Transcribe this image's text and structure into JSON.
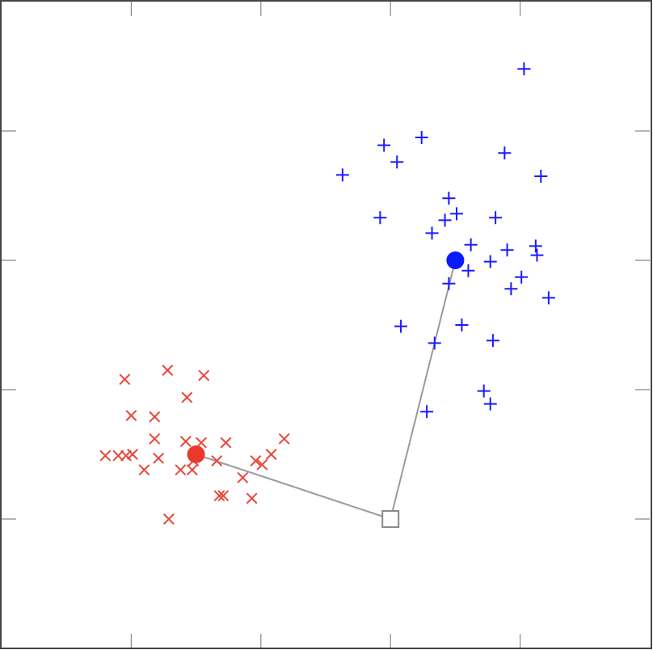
{
  "chart_data": {
    "type": "scatter",
    "title": "",
    "xlabel": "",
    "ylabel": "",
    "xlim": [
      0,
      5
    ],
    "ylim": [
      0,
      5
    ],
    "xticks": [
      1,
      2,
      3,
      4
    ],
    "yticks": [
      1,
      2,
      3,
      4
    ],
    "grid": false,
    "series": [
      {
        "marker": "plus",
        "color": "#1a1aff",
        "points": [
          [
            4.03,
            4.48
          ],
          [
            2.95,
            3.89
          ],
          [
            3.24,
            3.95
          ],
          [
            3.05,
            3.76
          ],
          [
            2.63,
            3.66
          ],
          [
            3.88,
            3.83
          ],
          [
            4.16,
            3.65
          ],
          [
            3.45,
            3.48
          ],
          [
            3.51,
            3.36
          ],
          [
            2.92,
            3.33
          ],
          [
            3.42,
            3.31
          ],
          [
            3.81,
            3.33
          ],
          [
            3.32,
            3.21
          ],
          [
            3.62,
            3.12
          ],
          [
            3.9,
            3.08
          ],
          [
            4.12,
            3.11
          ],
          [
            4.13,
            3.04
          ],
          [
            3.77,
            2.99
          ],
          [
            3.6,
            2.92
          ],
          [
            4.01,
            2.87
          ],
          [
            3.45,
            2.82
          ],
          [
            3.93,
            2.78
          ],
          [
            4.22,
            2.71
          ],
          [
            3.08,
            2.49
          ],
          [
            3.55,
            2.5
          ],
          [
            3.34,
            2.36
          ],
          [
            3.79,
            2.38
          ],
          [
            3.72,
            1.99
          ],
          [
            3.77,
            1.89
          ],
          [
            3.28,
            1.83
          ]
        ]
      },
      {
        "marker": "x",
        "color": "#e8473a",
        "points": [
          [
            0.95,
            2.08
          ],
          [
            1.28,
            2.15
          ],
          [
            1.56,
            2.11
          ],
          [
            1.43,
            1.94
          ],
          [
            1.0,
            1.8
          ],
          [
            1.18,
            1.79
          ],
          [
            1.18,
            1.62
          ],
          [
            1.42,
            1.6
          ],
          [
            1.54,
            1.59
          ],
          [
            1.73,
            1.59
          ],
          [
            2.18,
            1.62
          ],
          [
            1.48,
            1.45
          ],
          [
            1.66,
            1.45
          ],
          [
            0.8,
            1.49
          ],
          [
            0.9,
            1.49
          ],
          [
            0.96,
            1.49
          ],
          [
            1.01,
            1.5
          ],
          [
            1.21,
            1.47
          ],
          [
            2.08,
            1.5
          ],
          [
            1.96,
            1.45
          ],
          [
            1.1,
            1.38
          ],
          [
            1.38,
            1.38
          ],
          [
            1.47,
            1.38
          ],
          [
            2.01,
            1.42
          ],
          [
            1.86,
            1.32
          ],
          [
            1.68,
            1.18
          ],
          [
            1.71,
            1.18
          ],
          [
            1.93,
            1.16
          ],
          [
            1.29,
            1.0
          ]
        ]
      }
    ],
    "centroids": [
      {
        "x": 3.5,
        "y": 3.0,
        "color": "#0a1aff"
      },
      {
        "x": 1.5,
        "y": 1.5,
        "color": "#e8392c"
      }
    ],
    "query_point": {
      "x": 3.0,
      "y": 1.0,
      "color": "#8a8a8a"
    },
    "connector_color": "#9a9a9a",
    "frame_color": "#444444",
    "tick_color": "#888888"
  }
}
